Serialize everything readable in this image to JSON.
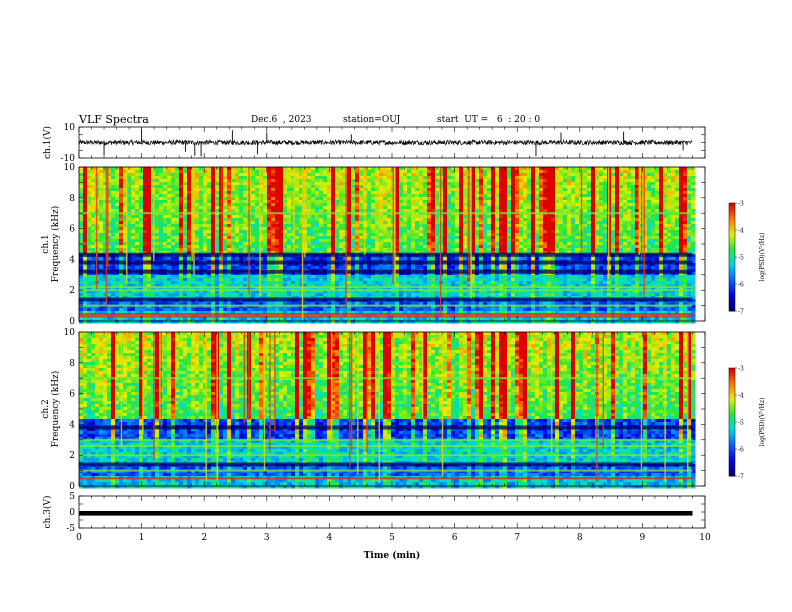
{
  "header": {
    "title": "VLF Spectra",
    "date": "Dec.6  , 2023",
    "station": "station=OUJ",
    "start": "start  UT =   6  : 20 : 0"
  },
  "chart_data": [
    {
      "type": "line",
      "name": "ch1-waveform",
      "ylabel": "ch.1(V)",
      "ylim": [
        -10,
        10
      ],
      "y_ticks": [
        "10",
        "-10"
      ],
      "xlim": [
        0,
        9.8
      ],
      "baseline": 0,
      "amplitude": 1.5,
      "spikes_min": [
        0.4,
        1.0,
        1.7,
        1.85,
        1.95,
        2.45,
        2.85,
        3.0,
        4.35,
        7.3,
        7.7,
        8.7,
        9.65
      ]
    },
    {
      "type": "heatmap",
      "name": "ch1-spectrogram",
      "ylabel": "ch.1\nFrequency (kHz)",
      "ylim": [
        0,
        10
      ],
      "y_ticks": [
        "0",
        "2",
        "4",
        "6",
        "8",
        "10"
      ],
      "xlim": [
        0,
        9.8
      ],
      "colorbar": {
        "label": "log(PSD)(V²/Hz)",
        "range": [
          -7,
          -3
        ],
        "ticks": [
          "-3",
          "-4",
          "-5",
          "-6",
          "-7"
        ]
      },
      "bright_bands_kHz": [
        0.3,
        0.45,
        1.0,
        2.0,
        2.2,
        7.0
      ],
      "dark_bands_kHz": [
        1.4,
        3.2,
        3.8,
        4.3
      ]
    },
    {
      "type": "heatmap",
      "name": "ch2-spectrogram",
      "ylabel": "ch.2\nFrequency (kHz)",
      "ylim": [
        0,
        10
      ],
      "y_ticks": [
        "0",
        "2",
        "4",
        "6",
        "8",
        "10"
      ],
      "xlim": [
        0,
        9.8
      ],
      "colorbar": {
        "label": "log(PSD)(V²/Hz)",
        "range": [
          -7,
          -3
        ],
        "ticks": [
          "-3",
          "-4",
          "-5",
          "-6",
          "-7"
        ]
      },
      "bright_bands_kHz": [
        0.5,
        1.0,
        2.0,
        2.6,
        3.0,
        7.0
      ],
      "dark_bands_kHz": [
        1.4,
        3.8
      ]
    },
    {
      "type": "line",
      "name": "ch3-waveform",
      "ylabel": "ch.3(V)",
      "ylim": [
        -5,
        5
      ],
      "y_ticks": [
        "5",
        "0",
        "-5"
      ],
      "xlim": [
        0,
        9.8
      ],
      "baseline": -0.4,
      "amplitude": 0.25
    }
  ],
  "x_axis": {
    "label": "Time  (min)",
    "range": [
      0,
      10
    ],
    "ticks": [
      "0",
      "1",
      "2",
      "3",
      "4",
      "5",
      "6",
      "7",
      "8",
      "9",
      "10"
    ]
  }
}
